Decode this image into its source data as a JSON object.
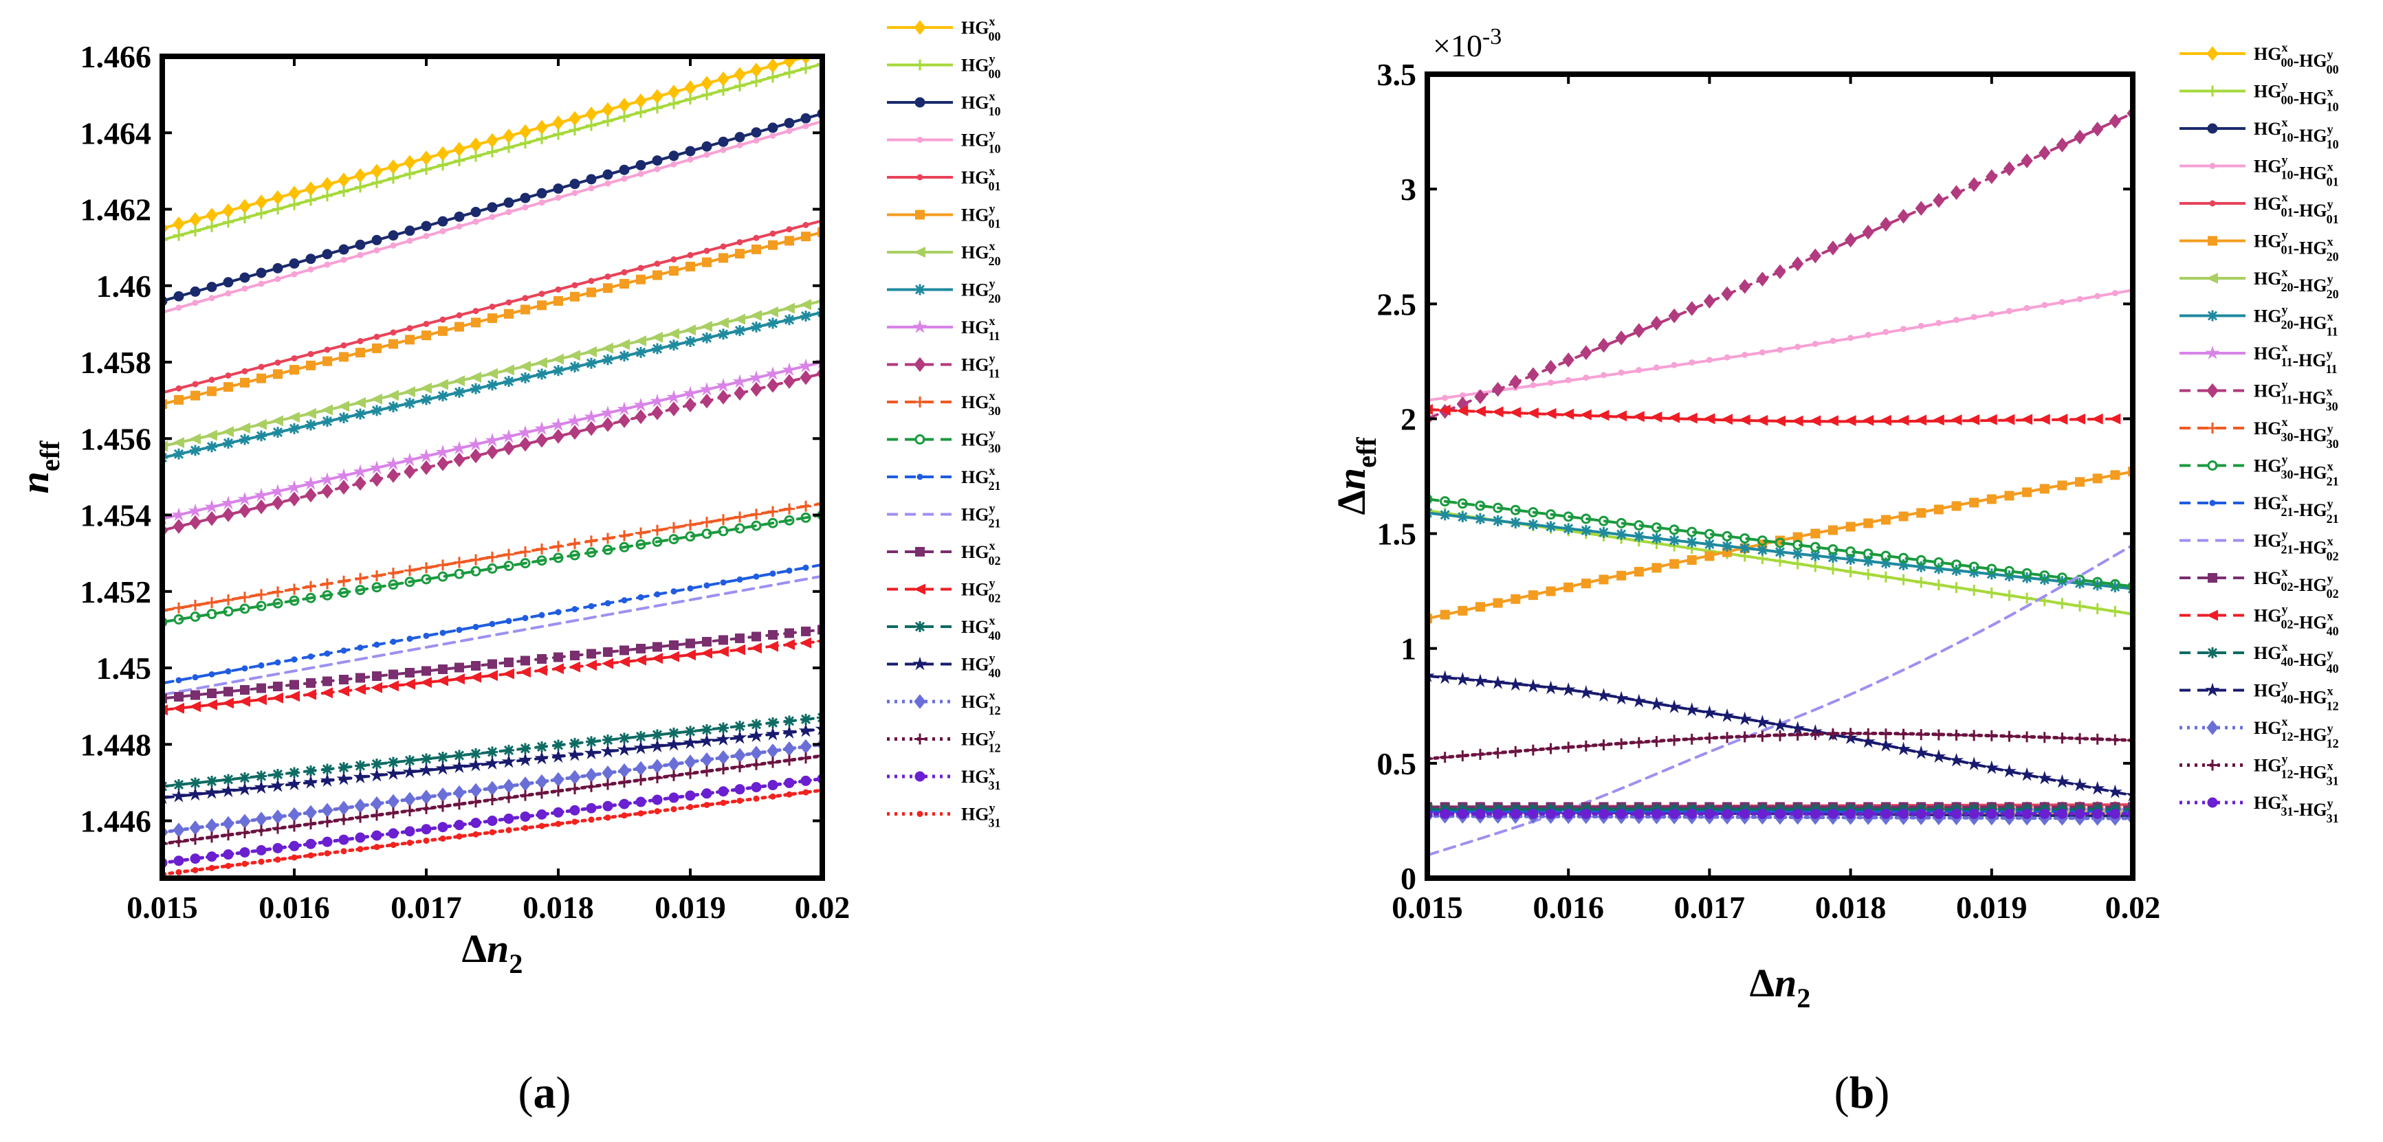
{
  "chart_data": [
    {
      "type": "line",
      "panel_label": "a",
      "title": "",
      "xlabel": "Δn",
      "xlabel_sub": "2",
      "ylabel": "n",
      "ylabel_sub": "eff",
      "xlim": [
        0.015,
        0.02
      ],
      "ylim": [
        1.4445,
        1.466
      ],
      "xticks": [
        "0.015",
        "0.016",
        "0.017",
        "0.018",
        "0.019",
        "0.02"
      ],
      "yticks": [
        {
          "v": 1.446,
          "t": "1.446"
        },
        {
          "v": 1.448,
          "t": "1.448"
        },
        {
          "v": 1.45,
          "t": "1.45"
        },
        {
          "v": 1.452,
          "t": "1.452"
        },
        {
          "v": 1.454,
          "t": "1.454"
        },
        {
          "v": 1.456,
          "t": "1.456"
        },
        {
          "v": 1.458,
          "t": "1.458"
        },
        {
          "v": 1.46,
          "t": "1.46"
        },
        {
          "v": 1.462,
          "t": "1.462"
        },
        {
          "v": 1.464,
          "t": "1.464"
        },
        {
          "v": 1.466,
          "t": "1.466"
        }
      ],
      "series": [
        {
          "base": "HG",
          "sup": "x",
          "sub": "00",
          "color": "#FFC000",
          "dash": "solid",
          "marker": "diamond",
          "x": [
            0.015,
            0.02
          ],
          "values": [
            1.4615,
            1.4661
          ]
        },
        {
          "base": "HG",
          "sup": "y",
          "sub": "00",
          "color": "#A6D93A",
          "dash": "solid",
          "marker": "plus",
          "x": [
            0.015,
            0.02
          ],
          "values": [
            1.4612,
            1.4658
          ]
        },
        {
          "base": "HG",
          "sup": "x",
          "sub": "10",
          "color": "#1A2A6C",
          "dash": "solid",
          "marker": "circle",
          "x": [
            0.015,
            0.02
          ],
          "values": [
            1.4596,
            1.4645
          ]
        },
        {
          "base": "HG",
          "sup": "y",
          "sub": "10",
          "color": "#F7A1D5",
          "dash": "solid",
          "marker": "dot",
          "x": [
            0.015,
            0.02
          ],
          "values": [
            1.4593,
            1.4643
          ]
        },
        {
          "base": "HG",
          "sup": "x",
          "sub": "01",
          "color": "#E8435A",
          "dash": "solid",
          "marker": "dot",
          "x": [
            0.015,
            0.02
          ],
          "values": [
            1.4572,
            1.4617
          ]
        },
        {
          "base": "HG",
          "sup": "y",
          "sub": "01",
          "color": "#F39C1F",
          "dash": "solid",
          "marker": "square",
          "x": [
            0.015,
            0.02
          ],
          "values": [
            1.4569,
            1.4614
          ]
        },
        {
          "base": "HG",
          "sup": "x",
          "sub": "20",
          "color": "#A9CF62",
          "dash": "solid",
          "marker": "triangle-left",
          "x": [
            0.015,
            0.02
          ],
          "values": [
            1.4558,
            1.4596
          ]
        },
        {
          "base": "HG",
          "sup": "y",
          "sub": "20",
          "color": "#1F8A9E",
          "dash": "solid",
          "marker": "asterisk",
          "x": [
            0.015,
            0.02
          ],
          "values": [
            1.4555,
            1.4593
          ]
        },
        {
          "base": "HG",
          "sup": "x",
          "sub": "11",
          "color": "#D983E8",
          "dash": "solid",
          "marker": "star",
          "x": [
            0.015,
            0.02
          ],
          "values": [
            1.4539,
            1.458
          ]
        },
        {
          "base": "HG",
          "sup": "y",
          "sub": "11",
          "color": "#B23A7E",
          "dash": "dashed",
          "marker": "diamond",
          "x": [
            0.015,
            0.02
          ],
          "values": [
            1.4536,
            1.4577
          ]
        },
        {
          "base": "HG",
          "sup": "x",
          "sub": "30",
          "color": "#F05A22",
          "dash": "dashed",
          "marker": "plus",
          "x": [
            0.015,
            0.02
          ],
          "values": [
            1.4515,
            1.4543
          ]
        },
        {
          "base": "HG",
          "sup": "y",
          "sub": "30",
          "color": "#1A9A3E",
          "dash": "dashed",
          "marker": "circle-open",
          "x": [
            0.015,
            0.02
          ],
          "values": [
            1.4512,
            1.454
          ]
        },
        {
          "base": "HG",
          "sup": "x",
          "sub": "21",
          "color": "#1F5CE0",
          "dash": "dashed",
          "marker": "dot",
          "x": [
            0.015,
            0.02
          ],
          "values": [
            1.4496,
            1.4527
          ]
        },
        {
          "base": "HG",
          "sup": "y",
          "sub": "21",
          "color": "#9C91F0",
          "dash": "dashed",
          "marker": "none",
          "x": [
            0.015,
            0.02
          ],
          "values": [
            1.4493,
            1.4524
          ]
        },
        {
          "base": "HG",
          "sup": "x",
          "sub": "02",
          "color": "#7A2E6E",
          "dash": "dashed",
          "marker": "square",
          "x": [
            0.015,
            0.02
          ],
          "values": [
            1.4492,
            1.451
          ]
        },
        {
          "base": "HG",
          "sup": "y",
          "sub": "02",
          "color": "#EE1C25",
          "dash": "dashed",
          "marker": "triangle-left",
          "x": [
            0.015,
            0.02
          ],
          "values": [
            1.4489,
            1.4507
          ]
        },
        {
          "base": "HG",
          "sup": "x",
          "sub": "40",
          "color": "#0E6B63",
          "dash": "dashed",
          "marker": "asterisk",
          "x": [
            0.015,
            0.02
          ],
          "values": [
            1.4469,
            1.4487
          ]
        },
        {
          "base": "HG",
          "sup": "y",
          "sub": "40",
          "color": "#181A6E",
          "dash": "dashed",
          "marker": "star",
          "x": [
            0.015,
            0.02
          ],
          "values": [
            1.4466,
            1.4484
          ]
        },
        {
          "base": "HG",
          "sup": "x",
          "sub": "12",
          "color": "#6A6FD8",
          "dash": "dotted",
          "marker": "diamond",
          "x": [
            0.015,
            0.02
          ],
          "values": [
            1.4457,
            1.448
          ]
        },
        {
          "base": "HG",
          "sup": "y",
          "sub": "12",
          "color": "#6B1240",
          "dash": "dotted",
          "marker": "plus",
          "x": [
            0.015,
            0.02
          ],
          "values": [
            1.4454,
            1.4477
          ]
        },
        {
          "base": "HG",
          "sup": "x",
          "sub": "31",
          "color": "#6A1FD1",
          "dash": "dotted",
          "marker": "circle",
          "x": [
            0.015,
            0.02
          ],
          "values": [
            1.4449,
            1.4471
          ]
        },
        {
          "base": "HG",
          "sup": "y",
          "sub": "31",
          "color": "#F2231F",
          "dash": "dotted",
          "marker": "dot",
          "x": [
            0.015,
            0.02
          ],
          "values": [
            1.4446,
            1.4468
          ]
        }
      ]
    },
    {
      "type": "line",
      "panel_label": "b",
      "title": "",
      "xlabel": "Δn",
      "xlabel_sub": "2",
      "ylabel": "Δn",
      "ylabel_sub": "eff",
      "exponent_label": "×10",
      "exponent_power": "-3",
      "xlim": [
        0.015,
        0.02
      ],
      "ylim": [
        0,
        3.5
      ],
      "xticks": [
        "0.015",
        "0.016",
        "0.017",
        "0.018",
        "0.019",
        "0.02"
      ],
      "yticks": [
        {
          "v": 0,
          "t": "0"
        },
        {
          "v": 0.5,
          "t": "0.5"
        },
        {
          "v": 1,
          "t": "1"
        },
        {
          "v": 1.5,
          "t": "1.5"
        },
        {
          "v": 2,
          "t": "2"
        },
        {
          "v": 2.5,
          "t": "2.5"
        },
        {
          "v": 3,
          "t": "3"
        },
        {
          "v": 3.5,
          "t": "3.5"
        }
      ],
      "series": [
        {
          "a_sup": "x",
          "a_sub": "00",
          "b_sup": "y",
          "b_sub": "00",
          "color": "#FFC000",
          "dash": "solid",
          "marker": "diamond",
          "x": [
            0.015,
            0.02
          ],
          "values": [
            0.3,
            0.28
          ]
        },
        {
          "a_sup": "y",
          "a_sub": "00",
          "b_sup": "x",
          "b_sub": "10",
          "color": "#A6D93A",
          "dash": "solid",
          "marker": "plus",
          "x": [
            0.015,
            0.0175,
            0.02
          ],
          "values": [
            1.6,
            1.38,
            1.15
          ]
        },
        {
          "a_sup": "x",
          "a_sub": "10",
          "b_sup": "y",
          "b_sub": "10",
          "color": "#1A2A6C",
          "dash": "solid",
          "marker": "circle",
          "x": [
            0.015,
            0.02
          ],
          "values": [
            0.29,
            0.27
          ]
        },
        {
          "a_sup": "y",
          "a_sub": "10",
          "b_sup": "x",
          "b_sub": "01",
          "color": "#F7A1D5",
          "dash": "solid",
          "marker": "dot",
          "x": [
            0.015,
            0.0175,
            0.02
          ],
          "values": [
            2.08,
            2.3,
            2.56
          ]
        },
        {
          "a_sup": "x",
          "a_sub": "01",
          "b_sup": "y",
          "b_sub": "01",
          "color": "#E8435A",
          "dash": "solid",
          "marker": "dot",
          "x": [
            0.015,
            0.02
          ],
          "values": [
            0.31,
            0.32
          ]
        },
        {
          "a_sup": "y",
          "a_sub": "01",
          "b_sup": "x",
          "b_sub": "20",
          "color": "#F39C1F",
          "dash": "solid",
          "marker": "square",
          "x": [
            0.015,
            0.0175,
            0.02
          ],
          "values": [
            1.13,
            1.47,
            1.77
          ]
        },
        {
          "a_sup": "x",
          "a_sub": "20",
          "b_sup": "y",
          "b_sub": "20",
          "color": "#A9CF62",
          "dash": "solid",
          "marker": "triangle-left",
          "x": [
            0.015,
            0.02
          ],
          "values": [
            0.3,
            0.29
          ]
        },
        {
          "a_sup": "y",
          "a_sub": "20",
          "b_sup": "x",
          "b_sub": "11",
          "color": "#1F8A9E",
          "dash": "solid",
          "marker": "asterisk",
          "x": [
            0.015,
            0.0175,
            0.02
          ],
          "values": [
            1.59,
            1.42,
            1.26
          ]
        },
        {
          "a_sup": "x",
          "a_sub": "11",
          "b_sup": "y",
          "b_sub": "11",
          "color": "#D983E8",
          "dash": "solid",
          "marker": "star",
          "x": [
            0.015,
            0.02
          ],
          "values": [
            0.3,
            0.3
          ]
        },
        {
          "a_sup": "y",
          "a_sub": "11",
          "b_sup": "x",
          "b_sub": "30",
          "color": "#B23A7E",
          "dash": "dashed",
          "marker": "diamond",
          "x": [
            0.015,
            0.0175,
            0.02
          ],
          "values": [
            2.0,
            2.64,
            3.33
          ]
        },
        {
          "a_sup": "x",
          "a_sub": "30",
          "b_sup": "y",
          "b_sub": "30",
          "color": "#F05A22",
          "dash": "dashed",
          "marker": "plus",
          "x": [
            0.015,
            0.02
          ],
          "values": [
            0.3,
            0.31
          ]
        },
        {
          "a_sup": "y",
          "a_sub": "30",
          "b_sup": "x",
          "b_sub": "21",
          "color": "#1A9A3E",
          "dash": "dashed",
          "marker": "circle-open",
          "x": [
            0.015,
            0.0175,
            0.02
          ],
          "values": [
            1.65,
            1.46,
            1.27
          ]
        },
        {
          "a_sup": "x",
          "a_sub": "21",
          "b_sup": "y",
          "b_sub": "21",
          "color": "#1F5CE0",
          "dash": "dashed",
          "marker": "dot",
          "x": [
            0.015,
            0.02
          ],
          "values": [
            0.29,
            0.29
          ]
        },
        {
          "a_sup": "y",
          "a_sub": "21",
          "b_sup": "x",
          "b_sub": "02",
          "color": "#9C91F0",
          "dash": "dashed",
          "marker": "none",
          "x": [
            0.015,
            0.016,
            0.017,
            0.018,
            0.019,
            0.02
          ],
          "values": [
            0.1,
            0.3,
            0.55,
            0.8,
            1.1,
            1.45
          ]
        },
        {
          "a_sup": "x",
          "a_sub": "02",
          "b_sup": "y",
          "b_sub": "02",
          "color": "#7A2E6E",
          "dash": "dashed",
          "marker": "square",
          "x": [
            0.015,
            0.02
          ],
          "values": [
            0.31,
            0.31
          ]
        },
        {
          "a_sup": "y",
          "a_sub": "02",
          "b_sup": "x",
          "b_sub": "40",
          "color": "#EE1C25",
          "dash": "dashed",
          "marker": "triangle-left",
          "x": [
            0.015,
            0.0175,
            0.02
          ],
          "values": [
            2.04,
            1.99,
            2.0
          ]
        },
        {
          "a_sup": "x",
          "a_sub": "40",
          "b_sup": "y",
          "b_sub": "40",
          "color": "#0E6B63",
          "dash": "dashed",
          "marker": "asterisk",
          "x": [
            0.015,
            0.02
          ],
          "values": [
            0.3,
            0.3
          ]
        },
        {
          "a_sup": "y",
          "a_sub": "40",
          "b_sup": "x",
          "b_sub": "12",
          "color": "#181A6E",
          "dash": "dashed",
          "marker": "star",
          "x": [
            0.015,
            0.016,
            0.017,
            0.018,
            0.019,
            0.02
          ],
          "values": [
            0.88,
            0.82,
            0.72,
            0.61,
            0.48,
            0.36
          ]
        },
        {
          "a_sup": "x",
          "a_sub": "12",
          "b_sup": "y",
          "b_sub": "12",
          "color": "#6A6FD8",
          "dash": "dotted",
          "marker": "diamond",
          "x": [
            0.015,
            0.02
          ],
          "values": [
            0.27,
            0.26
          ]
        },
        {
          "a_sup": "y",
          "a_sub": "12",
          "b_sup": "x",
          "b_sub": "31",
          "color": "#6B1240",
          "dash": "dotted",
          "marker": "plus",
          "x": [
            0.015,
            0.016,
            0.017,
            0.018,
            0.019,
            0.02
          ],
          "values": [
            0.52,
            0.57,
            0.61,
            0.63,
            0.62,
            0.6
          ]
        },
        {
          "a_sup": "x",
          "a_sub": "31",
          "b_sup": "y",
          "b_sub": "31",
          "color": "#6A1FD1",
          "dash": "dotted",
          "marker": "circle",
          "x": [
            0.015,
            0.02
          ],
          "values": [
            0.28,
            0.28
          ]
        }
      ]
    }
  ],
  "captions": {
    "a": {
      "open": "(",
      "letter": "a",
      "close": ")"
    },
    "b": {
      "open": "(",
      "letter": "b",
      "close": ")"
    }
  }
}
